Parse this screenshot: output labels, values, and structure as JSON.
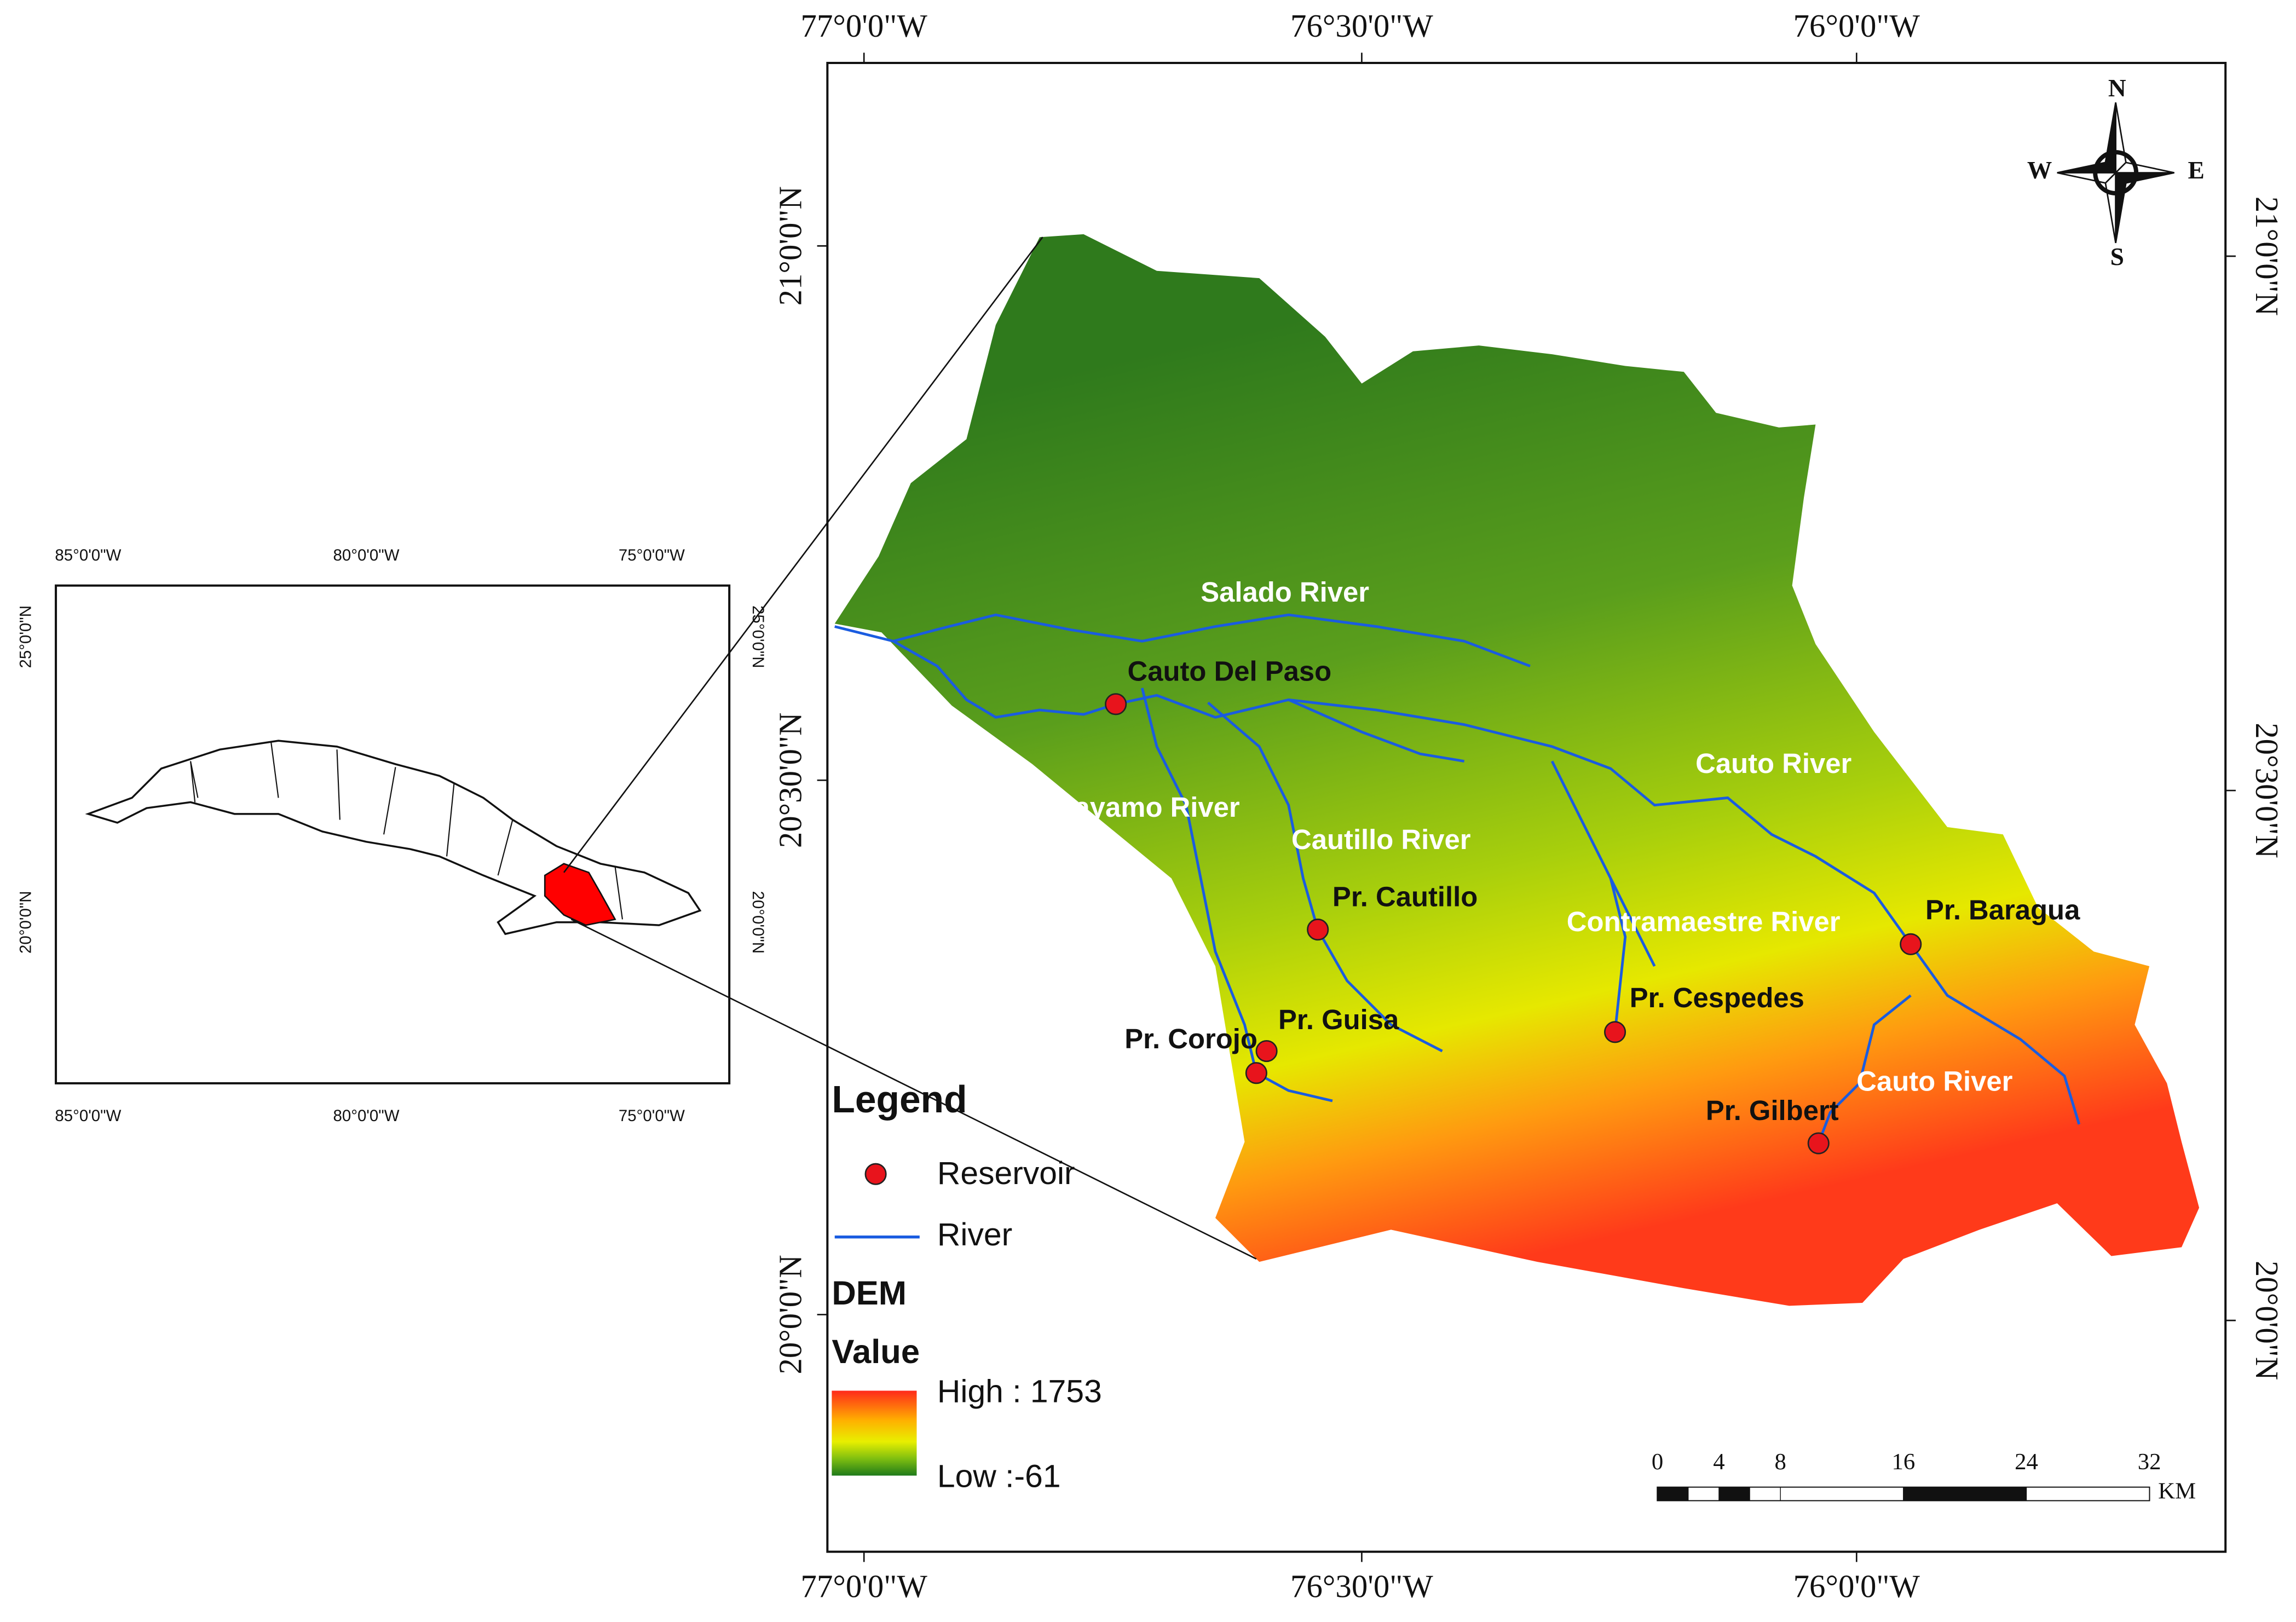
{
  "inset_map": {
    "top_labels": [
      "85°0'0\"W",
      "80°0'0\"W",
      "75°0'0\"W"
    ],
    "bottom_labels": [
      "85°0'0\"W",
      "80°0'0\"W",
      "75°0'0\"W"
    ],
    "left_labels": [
      "25°0'0\"N",
      "20°0'0\"N"
    ],
    "right_labels": [
      "25°0'0\"N",
      "20°0'0\"N"
    ]
  },
  "main_map": {
    "top_labels": [
      "77°0'0\"W",
      "76°30'0\"W",
      "76°0'0\"W"
    ],
    "bottom_labels": [
      "77°0'0\"W",
      "76°30'0\"W",
      "76°0'0\"W"
    ],
    "left_labels": [
      "21°0'0\"N",
      "20°30'0\"N",
      "20°0'0\"N"
    ],
    "right_labels": [
      "21°0'0\"N",
      "20°30'0\"N",
      "20°0'0\"N"
    ]
  },
  "compass": {
    "north": "N",
    "south": "S",
    "east": "E",
    "west": "W"
  },
  "rivers": [
    "Salado River",
    "Cauto River",
    "Bayamo River",
    "Cautillo River",
    "Contramaestre River",
    "Cauto River"
  ],
  "reservoirs": [
    "Cauto Del Paso",
    "Pr. Cautillo",
    "Pr. Guisa",
    "Pr. Corojo",
    "Pr. Cespedes",
    "Pr. Baragua",
    "Pr. Gilbert"
  ],
  "legend": {
    "title": "Legend",
    "reservoir": "Reservoir",
    "river": "River",
    "dem_title": "DEM",
    "value_title": "Value",
    "high": "High : 1753",
    "low": "Low :-61"
  },
  "scale_bar": {
    "labels": [
      0,
      4,
      8,
      16,
      24,
      32
    ],
    "unit": "KM"
  }
}
